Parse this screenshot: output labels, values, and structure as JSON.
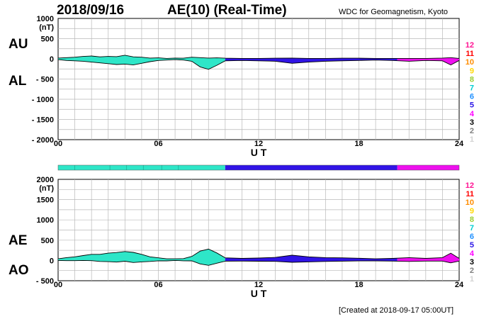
{
  "header": {
    "date": "2018/09/16",
    "title": "AE(10) (Real-Time)",
    "source": "WDC for Geomagnetism, Kyoto"
  },
  "footer": {
    "created": "[Created at 2018-09-17 05:00UT]"
  },
  "legend": {
    "levels": [
      {
        "label": "12",
        "color": "#ff1493"
      },
      {
        "label": "11",
        "color": "#ff0000"
      },
      {
        "label": "10",
        "color": "#ff8c00"
      },
      {
        "label": "9",
        "color": "#ffd700"
      },
      {
        "label": "8",
        "color": "#9acd32"
      },
      {
        "label": "7",
        "color": "#00ced1"
      },
      {
        "label": "6",
        "color": "#1e90ff"
      },
      {
        "label": "5",
        "color": "#2a14e6"
      },
      {
        "label": "4",
        "color": "#ff00ff"
      },
      {
        "label": "3",
        "color": "#000000"
      },
      {
        "label": "2",
        "color": "#808080"
      },
      {
        "label": "1",
        "color": "#d3d3d3"
      }
    ]
  },
  "coverage_bar": {
    "segments": [
      {
        "start": 0,
        "end": 10,
        "color": "#2ee6c8"
      },
      {
        "start": 10,
        "end": 20.3,
        "color": "#3014e6"
      },
      {
        "start": 20.3,
        "end": 24,
        "color": "#ee10ee"
      }
    ],
    "ticks": [
      1,
      3.1,
      4.1,
      5.1,
      6.2,
      7.2
    ]
  },
  "chart_data": [
    {
      "type": "area",
      "panel": "AU/AL",
      "labels": {
        "upper": "AU",
        "lower": "AL"
      },
      "xlabel": "U T",
      "unit_label": "(nT)",
      "xlim": [
        0,
        24
      ],
      "ylim": [
        -2000,
        1000
      ],
      "xticks": [
        0,
        6,
        12,
        18,
        24
      ],
      "xtick_labels": [
        "00",
        "06",
        "12",
        "18",
        "24"
      ],
      "yticks": [
        1000,
        500,
        0,
        -500,
        -1000,
        -1500,
        -2000
      ],
      "ytick_labels": [
        "1000",
        "500",
        "0",
        "- 500",
        "- 1000",
        "- 1500",
        "- 2000"
      ],
      "grid": true,
      "series": [
        {
          "name": "AU",
          "x": [
            0,
            0.5,
            1,
            1.5,
            2,
            2.5,
            3,
            3.5,
            4,
            4.5,
            5,
            5.5,
            6,
            6.5,
            7,
            7.5,
            8,
            8.5,
            9,
            9.5,
            10,
            11,
            12,
            13,
            14,
            15,
            16,
            17,
            18,
            19,
            20,
            21,
            22,
            23,
            23.5,
            24
          ],
          "values": [
            20,
            30,
            40,
            60,
            70,
            50,
            60,
            55,
            90,
            50,
            40,
            20,
            25,
            10,
            20,
            15,
            40,
            30,
            20,
            25,
            15,
            10,
            10,
            15,
            20,
            10,
            10,
            15,
            15,
            10,
            10,
            10,
            10,
            20,
            30,
            10
          ]
        },
        {
          "name": "AL",
          "x": [
            0,
            0.5,
            1,
            1.5,
            2,
            2.5,
            3,
            3.5,
            4,
            4.5,
            5,
            5.5,
            6,
            6.5,
            7,
            7.5,
            8,
            8.5,
            9,
            9.5,
            10,
            11,
            12,
            13,
            14,
            15,
            16,
            17,
            18,
            19,
            20,
            21,
            22,
            23,
            23.5,
            24
          ],
          "values": [
            -20,
            -40,
            -50,
            -60,
            -80,
            -100,
            -120,
            -140,
            -130,
            -150,
            -110,
            -70,
            -40,
            -30,
            -20,
            -30,
            -60,
            -200,
            -260,
            -160,
            -50,
            -40,
            -50,
            -60,
            -110,
            -80,
            -60,
            -50,
            -40,
            -30,
            -40,
            -60,
            -40,
            -50,
            -150,
            -40
          ]
        }
      ]
    },
    {
      "type": "area",
      "panel": "AE/AO",
      "labels": {
        "upper": "AE",
        "lower": "AO"
      },
      "xlabel": "U T",
      "unit_label": "(nT)",
      "xlim": [
        0,
        24
      ],
      "ylim": [
        -500,
        2000
      ],
      "xticks": [
        0,
        6,
        12,
        18,
        24
      ],
      "xtick_labels": [
        "00",
        "06",
        "12",
        "18",
        "24"
      ],
      "yticks": [
        2000,
        1500,
        1000,
        500,
        0,
        -500
      ],
      "ytick_labels": [
        "2000",
        "1500",
        "1000",
        "500",
        "0",
        "- 500"
      ],
      "grid": true,
      "series": [
        {
          "name": "AE",
          "x": [
            0,
            0.5,
            1,
            1.5,
            2,
            2.5,
            3,
            3.5,
            4,
            4.5,
            5,
            5.5,
            6,
            6.5,
            7,
            7.5,
            8,
            8.5,
            9,
            9.5,
            10,
            11,
            12,
            13,
            14,
            15,
            16,
            17,
            18,
            19,
            20,
            21,
            22,
            23,
            23.5,
            24
          ],
          "values": [
            40,
            70,
            90,
            120,
            150,
            150,
            180,
            195,
            220,
            200,
            150,
            90,
            65,
            40,
            40,
            45,
            100,
            230,
            280,
            185,
            65,
            50,
            60,
            75,
            130,
            90,
            70,
            65,
            55,
            40,
            50,
            70,
            50,
            70,
            180,
            50
          ]
        },
        {
          "name": "AO",
          "x": [
            0,
            0.5,
            1,
            1.5,
            2,
            2.5,
            3,
            3.5,
            4,
            4.5,
            5,
            5.5,
            6,
            6.5,
            7,
            7.5,
            8,
            8.5,
            9,
            9.5,
            10,
            11,
            12,
            13,
            14,
            15,
            16,
            17,
            18,
            19,
            20,
            21,
            22,
            23,
            23.5,
            24
          ],
          "values": [
            0,
            -5,
            -5,
            0,
            -5,
            -25,
            -30,
            -40,
            -20,
            -50,
            -35,
            -25,
            -8,
            -10,
            0,
            -8,
            -10,
            -85,
            -120,
            -68,
            -18,
            -15,
            -20,
            -22,
            -45,
            -35,
            -25,
            -18,
            -12,
            -10,
            -15,
            -25,
            -15,
            -15,
            -60,
            -15
          ]
        }
      ]
    }
  ]
}
